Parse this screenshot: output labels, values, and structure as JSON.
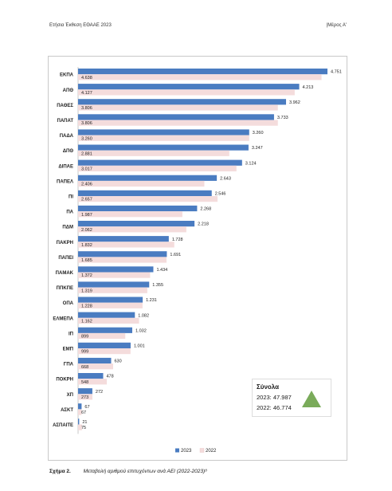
{
  "header": {
    "left": "Ετήσια Έκθεση ΕΘΑΑΕ 2023",
    "right": "|Μέρος Α'"
  },
  "caption": {
    "number": "Σχήμα 2.",
    "text": "Μεταβολή αριθμού επιτυχόντων ανά ΑΕΙ (2022-2023)⁸"
  },
  "totals": {
    "title": "Σύνολα",
    "line_2023": "2023: 47.987",
    "line_2022": "2022: 46.774",
    "icon": "triangle-up-icon",
    "icon_color": "#7aab5a"
  },
  "chart_data": {
    "type": "bar",
    "orientation": "horizontal",
    "categories": [
      "ΕΚΠΑ",
      "ΑΠΘ",
      "ΠΑΘΕΣ",
      "ΠΑΠΑΤ",
      "ΠΑΔΑ",
      "ΔΠΘ",
      "ΔΙΠΑΕ",
      "ΠΑΠΕΛ",
      "ΠΙ",
      "ΠΑ",
      "ΠΔΜ",
      "ΠΑΚΡΗ",
      "ΠΑΠΕΙ",
      "ΠΑΜΑΚ",
      "ΠΠΚΠΕ",
      "ΟΠΑ",
      "ΕΛΜΕΠΑ",
      "ΙΠ",
      "ΕΜΠ",
      "ΓΠΑ",
      "ΠΟΚΡΗ",
      "ΧΠ",
      "ΑΣΚΤ",
      "ΑΣΠΑΙΤΕ"
    ],
    "series": [
      {
        "name": "2023",
        "color": "#4a7cc1",
        "values": [
          4751,
          4213,
          3962,
          3733,
          3260,
          3247,
          3124,
          2643,
          2546,
          2268,
          2218,
          1728,
          1691,
          1434,
          1355,
          1231,
          1082,
          1032,
          1001,
          630,
          478,
          272,
          67,
          21
        ],
        "labels": [
          "4.751",
          "4.213",
          "3.962",
          "3.733",
          "3.260",
          "3.247",
          "3.124",
          "2.643",
          "2.546",
          "2.268",
          "2.218",
          "1.728",
          "1.691",
          "1.434",
          "1.355",
          "1.231",
          "1.082",
          "1.032",
          "1.001",
          "630",
          "478",
          "272",
          "67",
          "21"
        ]
      },
      {
        "name": "2022",
        "color": "#f4dcdc",
        "values": [
          4638,
          4127,
          3806,
          3806,
          3260,
          2881,
          3017,
          2406,
          2657,
          1987,
          2062,
          1832,
          1685,
          1372,
          1319,
          1228,
          1162,
          899,
          999,
          668,
          548,
          273,
          67,
          75
        ],
        "labels": [
          "4.638",
          "4.127",
          "3.806",
          "3.806",
          "3.260",
          "2.881",
          "3.017",
          "2.406",
          "2.657",
          "1.987",
          "2.062",
          "1.832",
          "1.685",
          "1.372",
          "1.319",
          "1.228",
          "1.162",
          "899",
          "999",
          "668",
          "548",
          "273",
          "67",
          "75"
        ]
      }
    ],
    "xlim": [
      0,
      4751
    ],
    "grid": false,
    "legend": "bottom-center"
  }
}
